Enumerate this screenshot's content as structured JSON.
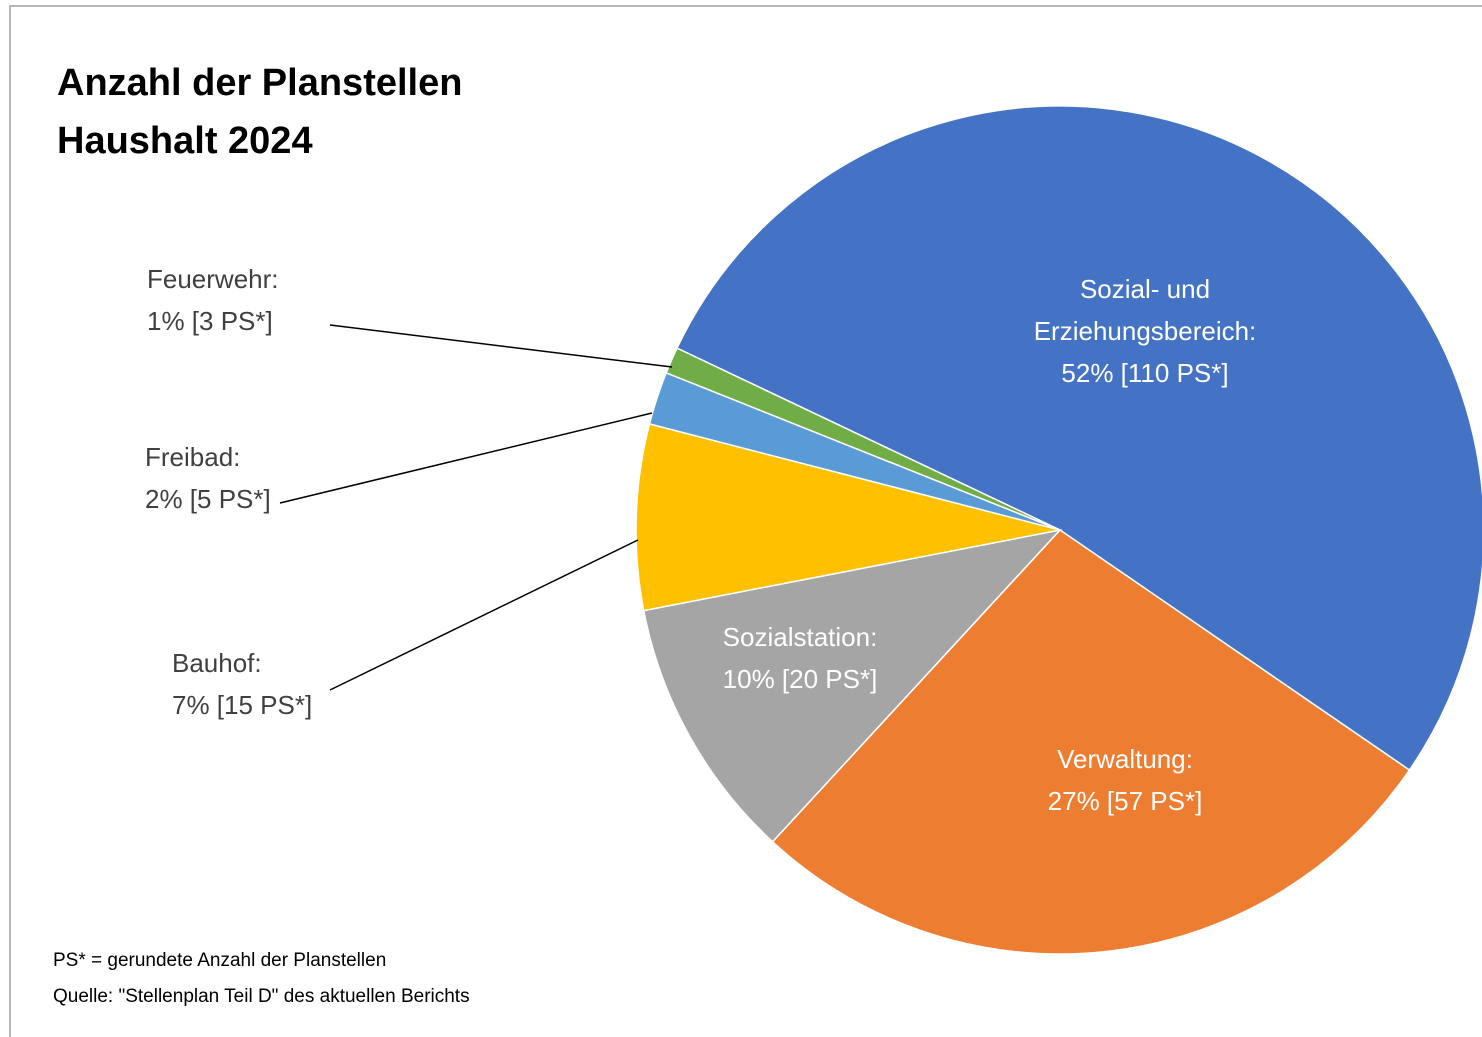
{
  "chart_data": {
    "type": "pie",
    "title": "Anzahl der Planstellen",
    "subtitle": "Haushalt 2024",
    "categories": [
      "Sozial- und Erziehungsbereich:",
      "Verwaltung:",
      "Sozialstation:",
      "Bauhof:",
      "Freibad:",
      "Feuerwehr:"
    ],
    "values": [
      52,
      27,
      10,
      7,
      2,
      1
    ],
    "value_labels": [
      "52% [110 PS*]",
      "27% [57 PS*]",
      "10% [20 PS*]",
      "7% [15 PS*]",
      "2% [5 PS*]",
      "1% [3 PS*]"
    ],
    "colors": [
      "#4472c4",
      "#ed7d31",
      "#a5a5a5",
      "#ffc000",
      "#5b9bd5",
      "#70ad47"
    ],
    "notes": [
      "PS* = gerundete Anzahl der Planstellen",
      "Quelle: \"Stellenplan Teil D\" des aktuellen Berichts"
    ]
  }
}
